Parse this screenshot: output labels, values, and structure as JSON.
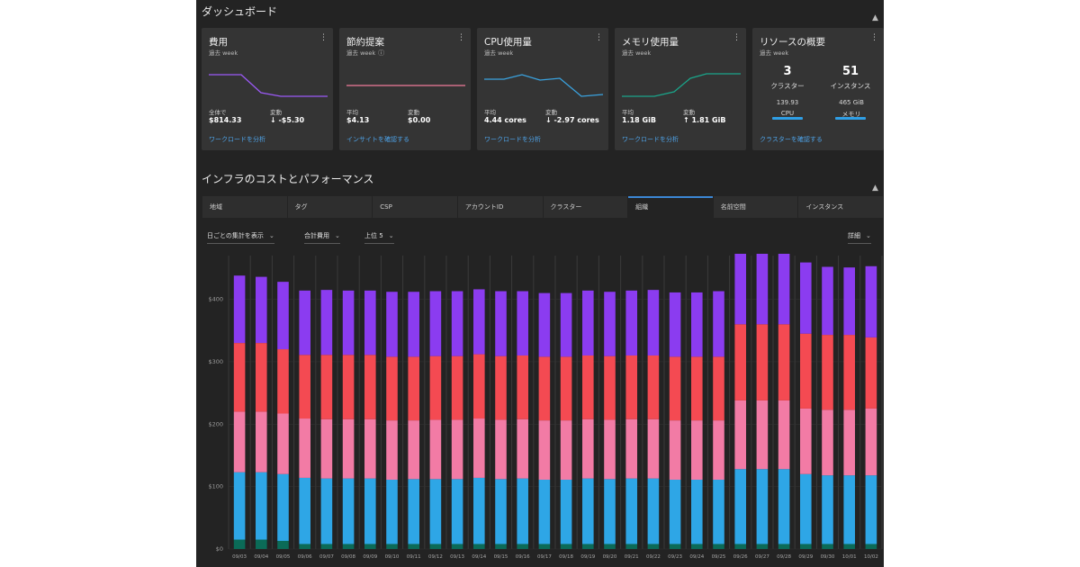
{
  "dashboard": {
    "title": "ダッシュボード",
    "collapse_icon": "chevron-up-icon"
  },
  "cards": {
    "cost": {
      "title": "費用",
      "period": "過去 week",
      "m1_label": "全体で",
      "m1_value": "$814.33",
      "m2_label": "変動",
      "m2_value": "↓ -$5.30",
      "link": "ワークロードを分析",
      "color": "#9b59f6"
    },
    "savings": {
      "title": "節約提案",
      "period": "過去 week",
      "m1_label": "平均",
      "m1_value": "$4.13",
      "m2_label": "変動",
      "m2_value": "$0.00",
      "link": "インサイトを確認する",
      "color": "#f07a9a"
    },
    "cpu": {
      "title": "CPU使用量",
      "period": "過去 week",
      "m1_label": "平均",
      "m1_value": "4.44 cores",
      "m2_label": "変動",
      "m2_value": "↓ -2.97 cores",
      "link": "ワークロードを分析",
      "color": "#3aa3e0"
    },
    "memory": {
      "title": "メモリ使用量",
      "period": "過去 week",
      "m1_label": "平均",
      "m1_value": "1.18 GiB",
      "m2_label": "変動",
      "m2_value": "↑ 1.81 GiB",
      "link": "ワークロードを分析",
      "color": "#1aa58a"
    },
    "resources": {
      "title": "リソースの概要",
      "period": "過去 week",
      "clusters_value": "3",
      "clusters_label": "クラスター",
      "instances_value": "51",
      "instances_label": "インスタンス",
      "cpu_value": "139.93",
      "cpu_label": "CPU",
      "mem_value": "465 GiB",
      "mem_label": "メモリ",
      "link": "クラスターを確認する"
    }
  },
  "infra": {
    "title": "インフラのコストとパフォーマンス",
    "tabs": [
      "地域",
      "タグ",
      "CSP",
      "アカウントID",
      "クラスター",
      "組織",
      "名前空間",
      "インスタンス"
    ],
    "active_tab": 5,
    "filters": {
      "aggregation": "日ごとの集計を表示",
      "metric": "合計費用",
      "top": "上位 5",
      "detail": "詳細"
    }
  },
  "chart_data": {
    "type": "bar",
    "stacked": true,
    "categories": [
      "09/03",
      "09/04",
      "09/05",
      "09/06",
      "09/07",
      "09/08",
      "09/09",
      "09/10",
      "09/11",
      "09/12",
      "09/13",
      "09/14",
      "09/15",
      "09/16",
      "09/17",
      "09/18",
      "09/19",
      "09/20",
      "09/21",
      "09/22",
      "09/23",
      "09/24",
      "09/25",
      "09/26",
      "09/27",
      "09/28",
      "09/29",
      "09/30",
      "10/01",
      "10/02"
    ],
    "yticks": [
      "$0",
      "$100",
      "$200",
      "$300",
      "$400"
    ],
    "ylim": [
      0,
      470
    ],
    "grid": true,
    "series": [
      {
        "color": "#0b6b57",
        "values": [
          15,
          15,
          13,
          8,
          8,
          8,
          8,
          8,
          8,
          8,
          8,
          8,
          8,
          8,
          8,
          8,
          8,
          8,
          8,
          8,
          8,
          8,
          8,
          8,
          8,
          8,
          8,
          8,
          8,
          8
        ]
      },
      {
        "color": "#2ea6e6",
        "values": [
          108,
          108,
          107,
          106,
          105,
          105,
          105,
          103,
          104,
          104,
          104,
          106,
          104,
          105,
          103,
          103,
          105,
          104,
          105,
          105,
          103,
          103,
          103,
          120,
          120,
          120,
          112,
          110,
          110,
          110
        ]
      },
      {
        "color": "#f27ba5",
        "values": [
          97,
          97,
          97,
          95,
          95,
          95,
          95,
          95,
          94,
          95,
          95,
          95,
          95,
          95,
          95,
          95,
          95,
          95,
          95,
          95,
          95,
          95,
          95,
          110,
          110,
          110,
          105,
          105,
          105,
          107
        ]
      },
      {
        "color": "#f44a52",
        "values": [
          110,
          110,
          103,
          102,
          103,
          103,
          103,
          102,
          102,
          102,
          102,
          103,
          102,
          102,
          102,
          102,
          102,
          102,
          102,
          102,
          102,
          102,
          102,
          122,
          122,
          122,
          120,
          120,
          120,
          114
        ]
      },
      {
        "color": "#8b3cf0",
        "values": [
          108,
          106,
          108,
          103,
          104,
          103,
          103,
          104,
          104,
          104,
          104,
          104,
          104,
          103,
          102,
          102,
          104,
          103,
          104,
          105,
          103,
          103,
          105,
          128,
          131,
          130,
          114,
          109,
          108,
          114
        ]
      }
    ]
  }
}
